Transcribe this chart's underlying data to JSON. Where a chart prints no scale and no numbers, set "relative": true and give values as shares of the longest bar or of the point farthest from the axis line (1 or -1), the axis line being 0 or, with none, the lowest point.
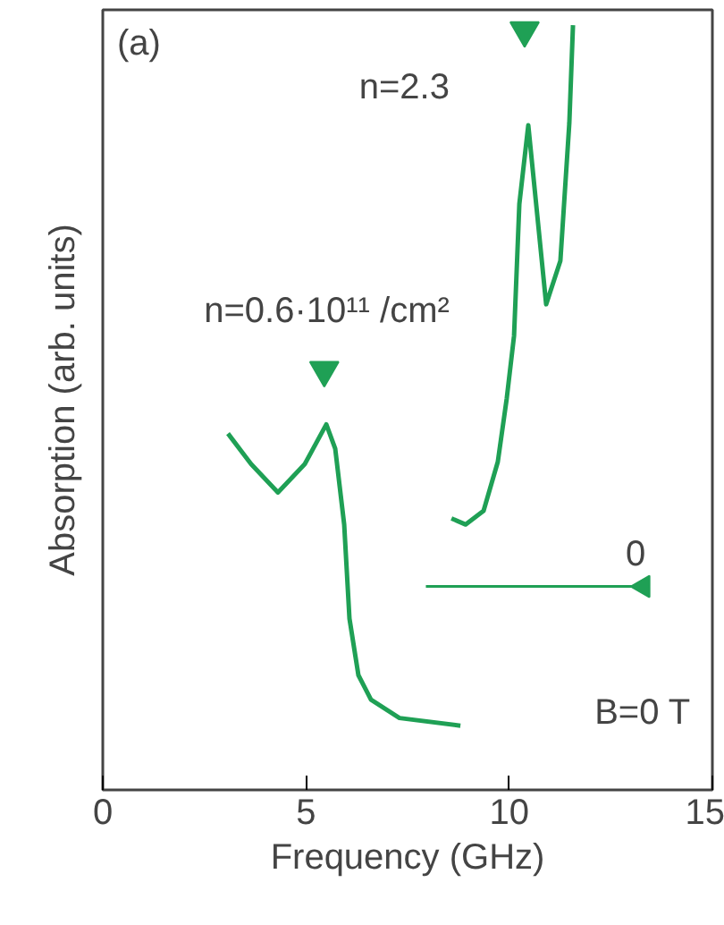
{
  "chart_data": {
    "type": "line",
    "xlabel": "Frequency (GHz)",
    "ylabel": "Absorption (arb. units)",
    "relative": true,
    "xlim": [
      0,
      15
    ],
    "xticks": [
      0,
      5,
      10,
      15
    ],
    "grid": false,
    "line_style": "solid",
    "series": [
      {
        "color": "#1fa055",
        "x": [
          3.08,
          3.65,
          4.31,
          4.97,
          5.5,
          5.72,
          5.94,
          6.07,
          6.29,
          6.6,
          7.3,
          8.8
        ],
        "values": [
          0.466,
          0.426,
          0.389,
          0.426,
          0.478,
          0.446,
          0.347,
          0.224,
          0.15,
          0.118,
          0.094,
          0.084
        ]
      },
      {
        "color": "#1fa055",
        "x": [
          8.58,
          8.93,
          9.37,
          9.72,
          9.94,
          10.12,
          10.25,
          10.47,
          10.91,
          11.26,
          11.48,
          11.57
        ],
        "values": [
          0.355,
          0.347,
          0.365,
          0.429,
          0.512,
          0.594,
          0.766,
          0.869,
          0.635,
          0.692,
          0.872,
          1.0
        ]
      },
      {
        "type": "scatter",
        "marker": "triangle",
        "color": "#1fa055",
        "x": [
          5.45,
          10.38
        ],
        "values": [
          0.549,
          0.993
        ]
      },
      {
        "type": "scatter",
        "marker": "triangle",
        "color": "#1fa055",
        "x": [
          13.3
        ],
        "values": [
          0.266
        ]
      }
    ],
    "ref_lines": [
      {
        "axis": "y",
        "value": 0.266,
        "label": "0",
        "color": "#1fa055",
        "line_style": "solid"
      }
    ],
    "annotations": [
      "(a)",
      "n=0.6·10¹¹ /cm²",
      "n=2.3",
      "B=0 T"
    ]
  }
}
